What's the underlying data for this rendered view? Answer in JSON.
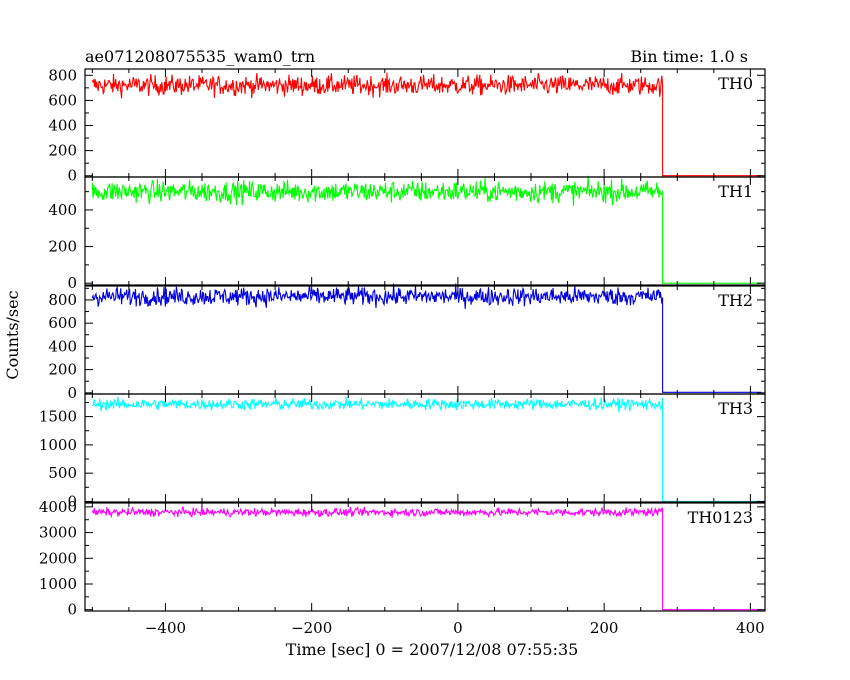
{
  "chart_data": {
    "type": "line",
    "title": "ae071208075535_wam0_trn",
    "subtitle": "Bin time: 1.0 s",
    "xlabel": "Time [sec] 0 = 2007/12/08 07:55:35",
    "ylabel": "Counts/sec",
    "xlim": [
      -510,
      420
    ],
    "x_ticks": [
      -400,
      -200,
      0,
      200,
      400
    ],
    "x_tick_labels": [
      "−400",
      "−200",
      "0",
      "200",
      "400"
    ],
    "drop_time": 280,
    "panels": [
      {
        "name": "TH0",
        "color": "#ff0000",
        "ylim": [
          -10,
          850
        ],
        "y_ticks": [
          0,
          200,
          400,
          600,
          800
        ],
        "y_tick_labels": [
          "0",
          "200",
          "400",
          "600",
          "800"
        ],
        "mean": 720,
        "noise": 40,
        "after": 0
      },
      {
        "name": "TH1",
        "color": "#00ff00",
        "ylim": [
          -10,
          580
        ],
        "y_ticks": [
          0,
          200,
          400
        ],
        "y_tick_labels": [
          "0",
          "200",
          "400"
        ],
        "mean": 500,
        "noise": 30,
        "after": 0
      },
      {
        "name": "TH2",
        "color": "#0000e0",
        "ylim": [
          -10,
          920
        ],
        "y_ticks": [
          0,
          200,
          400,
          600,
          800
        ],
        "y_tick_labels": [
          "0",
          "200",
          "400",
          "600",
          "800"
        ],
        "mean": 830,
        "noise": 40,
        "after": 5
      },
      {
        "name": "TH3",
        "color": "#00ffff",
        "ylim": [
          -10,
          1900
        ],
        "y_ticks": [
          0,
          500,
          1000,
          1500
        ],
        "y_tick_labels": [
          "0",
          "500",
          "1000",
          "1500"
        ],
        "mean": 1720,
        "noise": 50,
        "after": 0
      },
      {
        "name": "TH0123",
        "color": "#ff00ff",
        "ylim": [
          -50,
          4150
        ],
        "y_ticks": [
          0,
          1000,
          2000,
          3000,
          4000
        ],
        "y_tick_labels": [
          "0",
          "1000",
          "2000",
          "3000",
          "4000"
        ],
        "mean": 3790,
        "noise": 80,
        "after": 0
      }
    ]
  }
}
